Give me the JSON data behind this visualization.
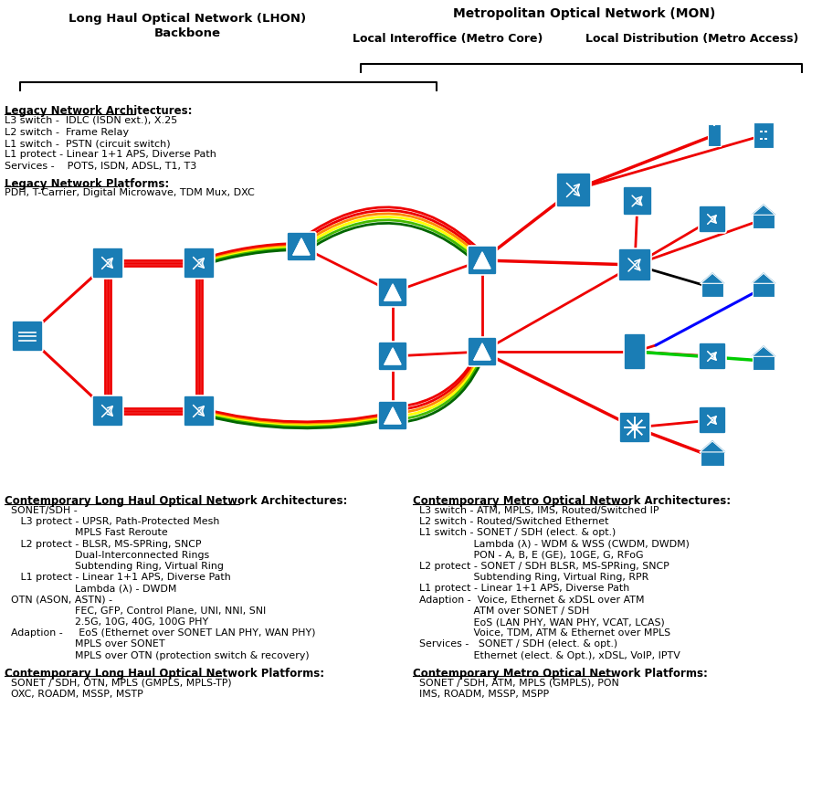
{
  "bg_color": "#ffffff",
  "header": {
    "lhon_label": "Long Haul Optical Network (LHON)\nBackbone",
    "mon_label": "Metropolitan Optical Network (MON)",
    "metro_core_label": "Local Interoffice (Metro Core)",
    "metro_access_label": "Local Distribution (Metro Access)"
  },
  "left_text_block1": {
    "heading": "Legacy Network Architectures:",
    "lines": [
      "L3 switch -  IDLC (ISDN ext.), X.25",
      "L2 switch -  Frame Relay",
      "L1 switch -  PSTN (circuit switch)",
      "L1 protect - Linear 1+1 APS, Diverse Path",
      "Services -    POTS, ISDN, ADSL, T1, T3"
    ]
  },
  "left_text_block2": {
    "heading": "Legacy Network Platforms:",
    "lines": [
      "PDH, T-Carrier, Digital Microwave, TDM Mux, DXC"
    ]
  },
  "bottom_left_arch": {
    "heading": "Contemporary Long Haul Optical Network Architectures:",
    "lines": [
      "  SONET/SDH -",
      "     L3 protect - UPSR, Path-Protected Mesh",
      "                      MPLS Fast Reroute",
      "     L2 protect - BLSR, MS-SPRing, SNCP",
      "                      Dual-Interconnected Rings",
      "                      Subtending Ring, Virtual Ring",
      "     L1 protect - Linear 1+1 APS, Diverse Path",
      "                      Lambda (λ) - DWDM",
      "  OTN (ASON, ASTN) -",
      "                      FEC, GFP, Control Plane, UNI, NNI, SNI",
      "                      2.5G, 10G, 40G, 100G PHY",
      "  Adaption -     EoS (Ethernet over SONET LAN PHY, WAN PHY)",
      "                      MPLS over SONET",
      "                      MPLS over OTN (protection switch & recovery)"
    ]
  },
  "bottom_left_plat": {
    "heading": "Contemporary Long Haul Optical Network Platforms:",
    "lines": [
      "  SONET / SDH, OTN, MPLS (GMPLS, MPLS-TP)",
      "  OXC, ROADM, MSSP, MSTP"
    ]
  },
  "bottom_right_arch": {
    "heading": "Contemporary Metro Optical Network Architectures:",
    "lines": [
      "  L3 switch - ATM, MPLS, IMS, Routed/Switched IP",
      "  L2 switch - Routed/Switched Ethernet",
      "  L1 switch - SONET / SDH (elect. & opt.)",
      "                   Lambda (λ) - WDM & WSS (CWDM, DWDM)",
      "                   PON - A, B, E (GE), 10GE, G, RFoG",
      "  L2 protect - SONET / SDH BLSR, MS-SPRing, SNCP",
      "                   Subtending Ring, Virtual Ring, RPR",
      "  L1 protect - Linear 1+1 APS, Diverse Path",
      "  Adaption -  Voice, Ethernet & xDSL over ATM",
      "                   ATM over SONET / SDH",
      "                   EoS (LAN PHY, WAN PHY, VCAT, LCAS)",
      "                   Voice, TDM, ATM & Ethernet over MPLS",
      "  Services -   SONET / SDH (elect. & opt.)",
      "                   Ethernet (elect. & Opt.), xDSL, VoIP, IPTV"
    ]
  },
  "bottom_right_plat": {
    "heading": "Contemporary Metro Optical Network Platforms:",
    "lines": [
      "  SONET / SDH, ATM, MPLS (GMPLS), PON",
      "  IMS, ROADM, MSSP, MSPP"
    ]
  },
  "node_color": "#1a7db5",
  "line_colors": {
    "red": "#ee0000",
    "orange": "#ff8800",
    "yellow": "#ffff00",
    "green": "#44bb00",
    "dark_green": "#006600",
    "blue": "#0000ff",
    "black": "#000000",
    "gray": "#888888"
  }
}
